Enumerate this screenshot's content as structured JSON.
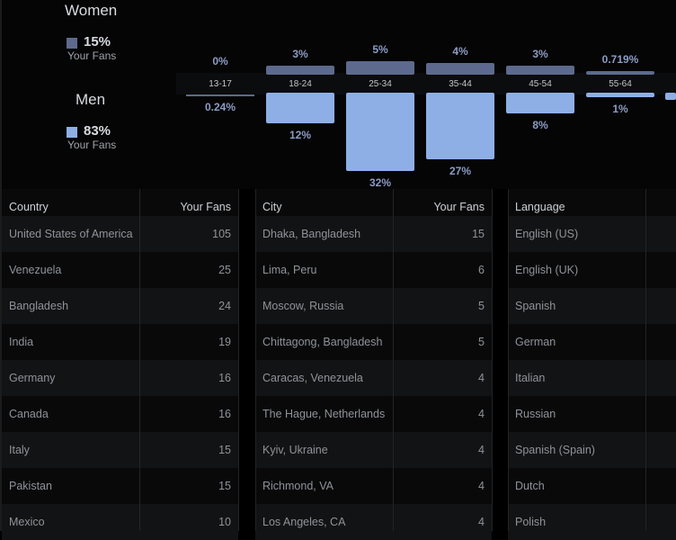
{
  "gender": {
    "women": {
      "label": "Women",
      "percent": "15%",
      "sublabel": "Your Fans",
      "color": "#5d6a8e"
    },
    "men": {
      "label": "Men",
      "percent": "83%",
      "sublabel": "Your Fans",
      "color": "#8eafe6"
    }
  },
  "age_chart": {
    "groups": [
      {
        "age": "13-17",
        "women": "0%",
        "men": "0.24%",
        "women_value": 0,
        "men_value": 0.24
      },
      {
        "age": "18-24",
        "women": "3%",
        "men": "12%",
        "women_value": 3,
        "men_value": 12
      },
      {
        "age": "25-34",
        "women": "5%",
        "men": "32%",
        "women_value": 5,
        "men_value": 32
      },
      {
        "age": "35-44",
        "women": "4%",
        "men": "27%",
        "women_value": 4,
        "men_value": 27
      },
      {
        "age": "45-54",
        "women": "3%",
        "men": "8%",
        "women_value": 3,
        "men_value": 8
      },
      {
        "age": "55-64",
        "women": "0.719%",
        "men": "1%",
        "women_value": 0.719,
        "men_value": 1
      }
    ]
  },
  "country_table": {
    "headers": [
      "Country",
      "Your Fans"
    ],
    "rows": [
      [
        "United States of America",
        "105"
      ],
      [
        "Venezuela",
        "25"
      ],
      [
        "Bangladesh",
        "24"
      ],
      [
        "India",
        "19"
      ],
      [
        "Germany",
        "16"
      ],
      [
        "Canada",
        "16"
      ],
      [
        "Italy",
        "15"
      ],
      [
        "Pakistan",
        "15"
      ],
      [
        "Mexico",
        "10"
      ]
    ]
  },
  "city_table": {
    "headers": [
      "City",
      "Your Fans"
    ],
    "rows": [
      [
        "Dhaka, Bangladesh",
        "15"
      ],
      [
        "Lima, Peru",
        "6"
      ],
      [
        "Moscow, Russia",
        "5"
      ],
      [
        "Chittagong, Bangladesh",
        "5"
      ],
      [
        "Caracas, Venezuela",
        "4"
      ],
      [
        "The Hague, Netherlands",
        "4"
      ],
      [
        "Kyiv, Ukraine",
        "4"
      ],
      [
        "Richmond, VA",
        "4"
      ],
      [
        "Los Angeles, CA",
        "4"
      ]
    ]
  },
  "language_table": {
    "headers": [
      "Language",
      ""
    ],
    "rows": [
      [
        "English (US)"
      ],
      [
        "English (UK)"
      ],
      [
        "Spanish"
      ],
      [
        "German"
      ],
      [
        "Italian"
      ],
      [
        "Russian"
      ],
      [
        "Spanish (Spain)"
      ],
      [
        "Dutch"
      ],
      [
        "Polish"
      ]
    ]
  }
}
